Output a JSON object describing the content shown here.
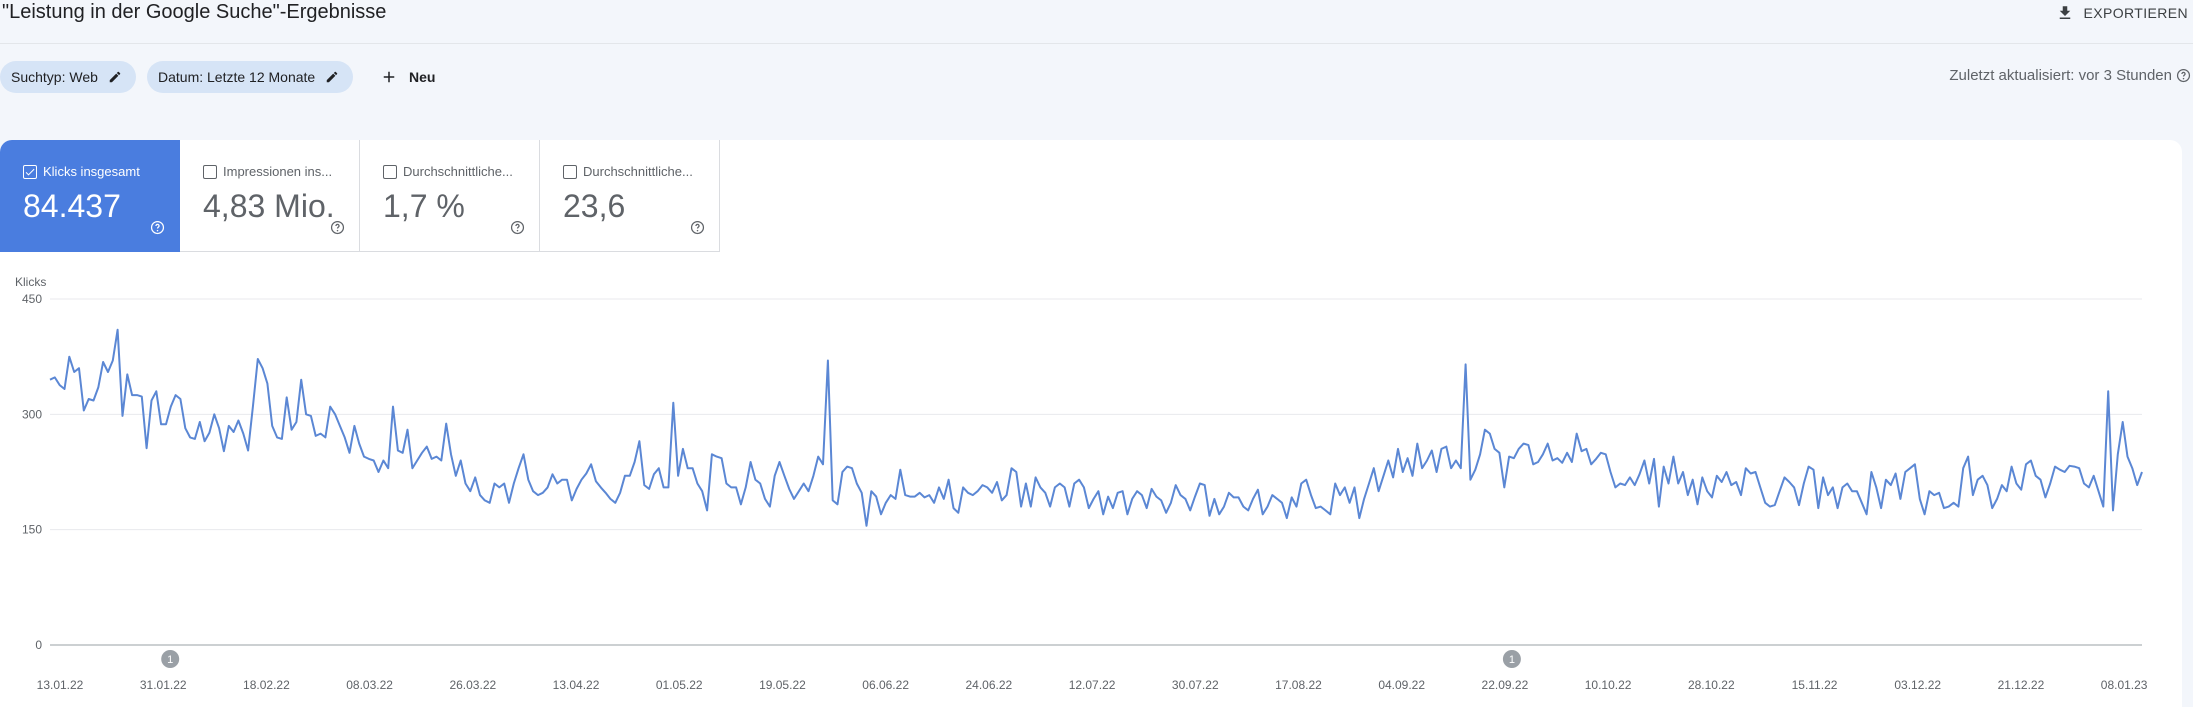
{
  "header": {
    "title": "\"Leistung in der Google Suche\"-Ergebnisse",
    "export_label": "EXPORTIEREN",
    "export_icon": "download-icon"
  },
  "filters": {
    "chips": [
      {
        "label": "Suchtyp: Web",
        "icon": "pencil-icon"
      },
      {
        "label": "Datum: Letzte 12 Monate",
        "icon": "pencil-icon"
      }
    ],
    "new_label": "Neu",
    "new_icon": "plus-icon",
    "last_updated": "Zuletzt aktualisiert: vor 3 Stunden",
    "help_icon": "help-circle-icon"
  },
  "metrics": [
    {
      "label": "Klicks insgesamt",
      "value": "84.437",
      "checked": true
    },
    {
      "label": "Impressionen ins...",
      "value": "4,83 Mio.",
      "checked": false
    },
    {
      "label": "Durchschnittliche...",
      "value": "1,7 %",
      "checked": false
    },
    {
      "label": "Durchschnittliche...",
      "value": "23,6",
      "checked": false
    }
  ],
  "colors": {
    "accent": "#4a7ddf",
    "line": "#5b87d4",
    "chip": "#d6e4f6",
    "annotation": "#9aa0a6"
  },
  "chart_data": {
    "type": "line",
    "ylabel": "Klicks",
    "ylim": [
      0,
      450
    ],
    "yticks": [
      0,
      150,
      300,
      450
    ],
    "x_ticks": [
      "13.01.22",
      "31.01.22",
      "18.02.22",
      "08.03.22",
      "26.03.22",
      "13.04.22",
      "01.05.22",
      "19.05.22",
      "06.06.22",
      "24.06.22",
      "12.07.22",
      "30.07.22",
      "17.08.22",
      "04.09.22",
      "22.09.22",
      "10.10.22",
      "28.10.22",
      "15.11.22",
      "03.12.22",
      "21.12.22",
      "08.01.23"
    ],
    "annotations": [
      {
        "label": "1",
        "date": "31.01.22"
      },
      {
        "label": "1",
        "date": "22.09.22"
      }
    ],
    "series": [
      {
        "values": [
          345,
          348,
          338,
          333,
          375,
          355,
          360,
          305,
          320,
          318,
          335,
          368,
          355,
          370,
          410,
          298,
          352,
          325,
          325,
          323,
          256,
          318,
          330,
          287,
          287,
          310,
          325,
          320,
          282,
          270,
          268,
          290,
          265,
          276,
          300,
          282,
          252,
          285,
          277,
          292,
          275,
          253,
          310,
          372,
          360,
          340,
          285,
          270,
          268,
          322,
          280,
          290,
          345,
          300,
          298,
          272,
          275,
          270,
          310,
          300,
          285,
          270,
          250,
          285,
          262,
          245,
          242,
          240,
          225,
          240,
          230,
          310,
          253,
          250,
          280,
          230,
          240,
          250,
          258,
          242,
          245,
          240,
          288,
          248,
          220,
          240,
          210,
          200,
          218,
          195,
          188,
          185,
          210,
          205,
          210,
          185,
          210,
          230,
          248,
          215,
          200,
          195,
          198,
          205,
          222,
          210,
          215,
          215,
          188,
          203,
          215,
          223,
          235,
          213,
          205,
          198,
          190,
          185,
          198,
          220,
          220,
          238,
          265,
          208,
          203,
          222,
          230,
          205,
          205,
          315,
          220,
          255,
          230,
          230,
          210,
          200,
          175,
          248,
          245,
          243,
          210,
          205,
          205,
          183,
          205,
          238,
          215,
          210,
          190,
          180,
          220,
          238,
          220,
          203,
          190,
          200,
          210,
          200,
          220,
          245,
          235,
          370,
          188,
          183,
          225,
          232,
          230,
          210,
          198,
          155,
          200,
          193,
          170,
          185,
          195,
          190,
          228,
          195,
          193,
          193,
          198,
          192,
          195,
          185,
          205,
          190,
          215,
          178,
          172,
          205,
          198,
          195,
          200,
          208,
          205,
          198,
          212,
          188,
          195,
          230,
          225,
          180,
          210,
          180,
          218,
          205,
          198,
          180,
          205,
          210,
          205,
          180,
          210,
          215,
          205,
          178,
          190,
          200,
          170,
          193,
          178,
          198,
          200,
          170,
          190,
          200,
          195,
          178,
          203,
          193,
          188,
          172,
          185,
          208,
          195,
          190,
          175,
          193,
          210,
          208,
          168,
          190,
          170,
          180,
          198,
          192,
          192,
          180,
          175,
          190,
          202,
          170,
          180,
          195,
          190,
          185,
          165,
          192,
          180,
          210,
          215,
          195,
          178,
          180,
          175,
          170,
          210,
          195,
          205,
          185,
          205,
          165,
          190,
          210,
          230,
          200,
          220,
          240,
          218,
          255,
          225,
          243,
          220,
          262,
          230,
          240,
          253,
          225,
          255,
          258,
          230,
          240,
          230,
          365,
          215,
          228,
          248,
          280,
          275,
          255,
          250,
          205,
          245,
          243,
          255,
          262,
          260,
          235,
          238,
          248,
          262,
          240,
          243,
          237,
          250,
          238,
          275,
          252,
          255,
          235,
          242,
          250,
          248,
          225,
          205,
          210,
          208,
          218,
          208,
          222,
          240,
          210,
          242,
          180,
          232,
          210,
          245,
          210,
          225,
          195,
          215,
          183,
          218,
          200,
          192,
          220,
          212,
          225,
          208,
          212,
          195,
          230,
          223,
          225,
          205,
          185,
          180,
          182,
          200,
          218,
          212,
          205,
          182,
          210,
          232,
          228,
          178,
          218,
          195,
          205,
          178,
          205,
          210,
          200,
          200,
          185,
          170,
          225,
          205,
          178,
          215,
          208,
          223,
          190,
          225,
          230,
          235,
          190,
          170,
          200,
          195,
          198,
          178,
          180,
          185,
          180,
          230,
          245,
          195,
          215,
          220,
          208,
          178,
          190,
          208,
          200,
          232,
          210,
          202,
          235,
          240,
          220,
          215,
          192,
          210,
          232,
          228,
          225,
          233,
          232,
          230,
          210,
          205,
          220,
          200,
          180,
          330,
          175,
          248,
          290,
          245,
          230,
          208,
          225
        ]
      }
    ]
  }
}
